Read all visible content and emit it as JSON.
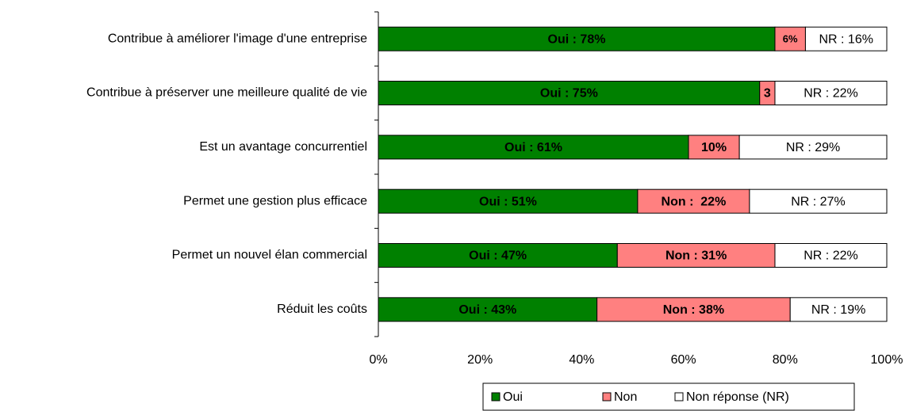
{
  "chart_data": {
    "type": "stacked-bar-horizontal",
    "categories": [
      "Contribue à améliorer l'image d'une entreprise",
      "Contribue à préserver une meilleure qualité de vie",
      "Est un avantage concurrentiel",
      "Permet une gestion plus efficace",
      "Permet un nouvel élan commercial",
      "Réduit les coûts"
    ],
    "series": [
      {
        "name": "Oui",
        "color": "#008000",
        "values": [
          78,
          75,
          61,
          51,
          47,
          43
        ],
        "value_labels": [
          "Oui : 78%",
          "Oui : 75%",
          "Oui : 61%",
          "Oui : 51%",
          "Oui : 47%",
          "Oui : 43%"
        ]
      },
      {
        "name": "Non",
        "color": "#ff8080",
        "values": [
          6,
          3,
          10,
          22,
          31,
          38
        ],
        "value_labels": [
          "6%",
          "3",
          "10%",
          "Non :  22%",
          "Non : 31%",
          "Non : 38%"
        ]
      },
      {
        "name": "Non réponse (NR)",
        "color": "#ffffff",
        "values": [
          16,
          22,
          29,
          27,
          22,
          19
        ],
        "value_labels": [
          "NR : 16%",
          "NR : 22%",
          "NR : 29%",
          "NR : 27%",
          "NR : 22%",
          "NR : 19%"
        ]
      }
    ],
    "xlim": [
      0,
      100
    ],
    "xticks": [
      {
        "value": 0,
        "label": "0%"
      },
      {
        "value": 20,
        "label": "20%"
      },
      {
        "value": 40,
        "label": "40%"
      },
      {
        "value": 60,
        "label": "60%"
      },
      {
        "value": 80,
        "label": "80%"
      },
      {
        "value": 100,
        "label": "100%"
      }
    ],
    "legend": "bottom"
  }
}
